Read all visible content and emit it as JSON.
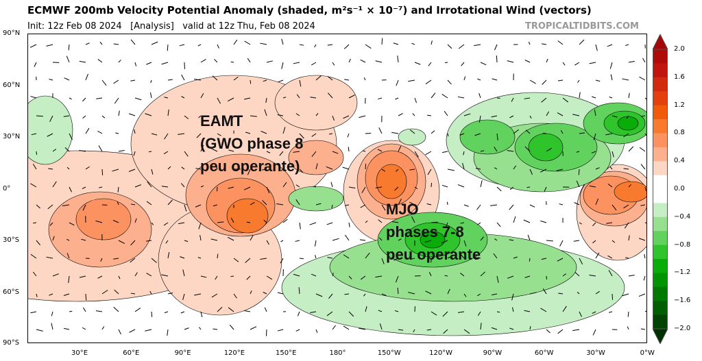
{
  "header": {
    "title": "ECMWF 200mb Velocity Potential Anomaly (shaded, m²s⁻¹ × 10⁻⁷) and Irrotational Wind (vectors)",
    "subtitle": "Init: 12z Feb 08 2024   [Analysis]   valid at 12z Thu, Feb 08 2024",
    "brand": "TROPICALTIDBITS.COM"
  },
  "axes": {
    "lat_labels": [
      "90°N",
      "60°N",
      "30°N",
      "0°",
      "30°S",
      "60°S",
      "90°S"
    ],
    "lon_labels": [
      "30°E",
      "60°E",
      "90°E",
      "120°E",
      "150°E",
      "180°",
      "150°W",
      "120°W",
      "90°W",
      "60°W",
      "30°W",
      "0°W"
    ]
  },
  "annotations": {
    "eamt": [
      "EAMT",
      "(GWO phase 8",
      "peu operante)"
    ],
    "mjo": [
      "MJO",
      "phases 7-8",
      "peu operante"
    ]
  },
  "colorbar": {
    "labels": [
      "2.0",
      "1.6",
      "1.2",
      "0.8",
      "0.4",
      "0.0",
      "−0.4",
      "−0.8",
      "−1.2",
      "−1.6",
      "−2.0"
    ],
    "colors": [
      "#b00b0b",
      "#c2140f",
      "#d22a0d",
      "#e3400d",
      "#f05a0a",
      "#f77a2e",
      "#fb9260",
      "#fdb08e",
      "#fed6c4",
      "#ffffff",
      "#ffffff",
      "#c6eec4",
      "#97e090",
      "#62d25f",
      "#2fc42c",
      "#0aac0a",
      "#039403",
      "#027a02",
      "#015f01",
      "#014401"
    ]
  }
}
